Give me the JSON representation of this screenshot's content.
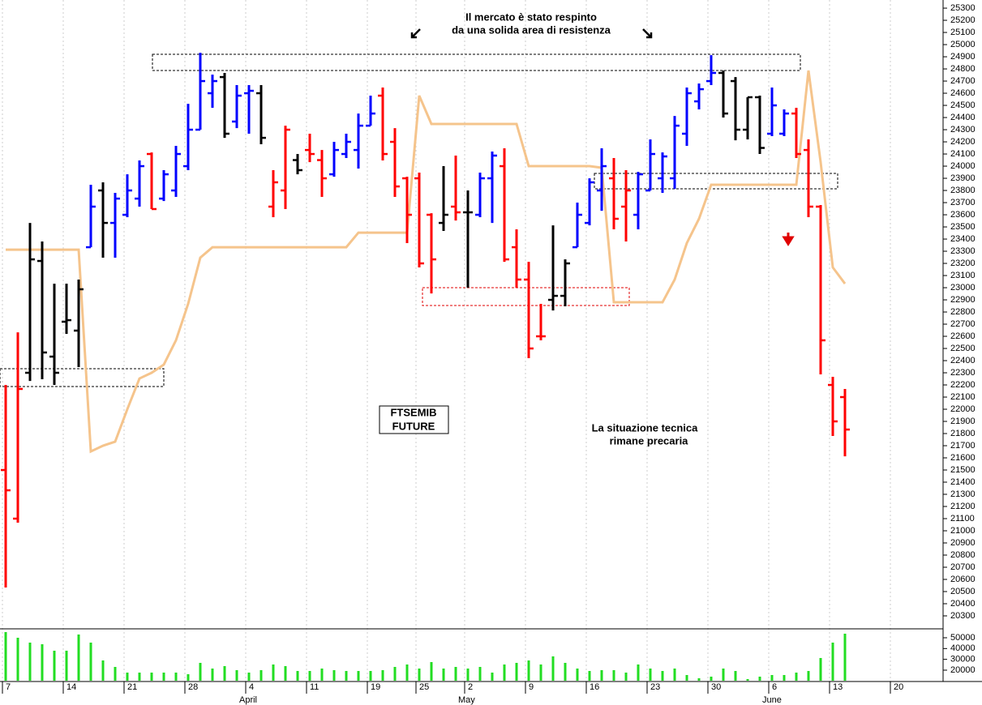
{
  "chart_data": {
    "type": "ohlc",
    "annotations": [
      {
        "lines": [
          "Il mercato è stato respinto",
          "da una solida area di resistenza"
        ],
        "color": "#000000"
      },
      {
        "lines": [
          "FTSEMIB",
          "FUTURE"
        ],
        "color": "#000000"
      },
      {
        "lines": [
          "La situazione tecnica",
          "rimane precaria"
        ],
        "color": "#e00000"
      }
    ],
    "categories": [
      "7",
      null,
      null,
      null,
      null,
      "14",
      null,
      null,
      null,
      null,
      "21",
      null,
      null,
      null,
      null,
      "28",
      null,
      null,
      null,
      null,
      "4",
      null,
      null,
      null,
      null,
      "11",
      null,
      null,
      null,
      null,
      "19",
      null,
      null,
      null,
      "25",
      null,
      null,
      null,
      "2",
      null,
      null,
      null,
      null,
      "9",
      null,
      null,
      null,
      null,
      "16",
      null,
      null,
      null,
      null,
      "23",
      null,
      null,
      null,
      null,
      "30",
      null,
      null,
      null,
      null,
      "6",
      null,
      null,
      null,
      null,
      "13",
      null,
      null,
      null,
      null,
      "20"
    ],
    "months": [
      null,
      null,
      null,
      null,
      null,
      null,
      null,
      null,
      null,
      null,
      null,
      null,
      null,
      null,
      null,
      null,
      null,
      null,
      null,
      null,
      "April",
      null,
      null,
      null,
      null,
      null,
      null,
      null,
      null,
      null,
      null,
      null,
      null,
      null,
      null,
      null,
      null,
      null,
      "May",
      null,
      null,
      null,
      null,
      null,
      null,
      null,
      null,
      null,
      null,
      null,
      null,
      null,
      null,
      null,
      null,
      null,
      null,
      null,
      null,
      null,
      null,
      null,
      null,
      "June",
      null,
      null,
      null,
      null,
      null,
      null,
      null,
      null,
      null,
      null
    ],
    "open": [
      21500,
      21100,
      22300,
      23220,
      22433,
      22720,
      22647,
      23333,
      23800,
      23533,
      23600,
      23733,
      24100,
      23733,
      23800,
      24000,
      24300,
      24600,
      24733,
      24367,
      24600,
      24600,
      23667,
      23800,
      24050,
      24133,
      24050,
      23933,
      24100,
      24133,
      24333,
      24580,
      24200,
      23900,
      23900,
      23600,
      23533,
      23667,
      23620,
      23600,
      23900,
      24000,
      23333,
      23067,
      22600,
      22900,
      22933,
      23333,
      23533,
      23800,
      23900,
      23667,
      23600,
      23800,
      23900,
      23900,
      24267,
      24533,
      24700,
      24767,
      24700,
      24300,
      24567,
      24267,
      24267,
      24433,
      24133,
      23667,
      22200,
      22100,
      null,
      null,
      null,
      null
    ],
    "high": [
      22200,
      22633,
      23533,
      23380,
      23033,
      23033,
      23067,
      23847,
      23867,
      23780,
      23933,
      24047,
      24113,
      23967,
      24167,
      24513,
      24933,
      24753,
      24767,
      24667,
      24667,
      24667,
      23967,
      24333,
      24100,
      24267,
      24133,
      24200,
      24267,
      24433,
      24580,
      24647,
      24313,
      23913,
      23947,
      23613,
      24000,
      24087,
      23800,
      23947,
      24120,
      24147,
      23480,
      23213,
      22867,
      23513,
      23233,
      23700,
      23900,
      24147,
      24067,
      23967,
      23953,
      24220,
      24113,
      24413,
      24647,
      24680,
      24913,
      24787,
      24733,
      24567,
      24580,
      24647,
      24467,
      24480,
      24220,
      23680,
      22267,
      22167,
      null,
      null,
      null,
      null
    ],
    "low": [
      20533,
      21067,
      22233,
      22247,
      22200,
      22620,
      22347,
      23333,
      23247,
      23247,
      23580,
      23667,
      23647,
      23713,
      23747,
      23967,
      24300,
      24480,
      24233,
      24313,
      24267,
      24180,
      23580,
      23647,
      23933,
      24033,
      23747,
      23913,
      24067,
      23980,
      24333,
      24047,
      23747,
      23367,
      23167,
      22953,
      23467,
      23553,
      23000,
      23580,
      23533,
      23213,
      23000,
      22420,
      22567,
      22813,
      22847,
      23333,
      23513,
      23633,
      23480,
      23380,
      23480,
      23800,
      23780,
      23813,
      24167,
      24467,
      24667,
      24400,
      24213,
      24220,
      24100,
      24247,
      24247,
      24067,
      23580,
      22287,
      21780,
      21613,
      null,
      null,
      null,
      null
    ],
    "close": [
      21333,
      22167,
      23233,
      22467,
      22300,
      22733,
      22987,
      23667,
      23533,
      23733,
      23800,
      24000,
      23647,
      23933,
      24100,
      24300,
      24700,
      24700,
      24267,
      24580,
      24620,
      24233,
      23867,
      24300,
      23967,
      24100,
      23900,
      24133,
      24200,
      24333,
      24433,
      24100,
      23833,
      23600,
      23200,
      23233,
      23600,
      23620,
      23620,
      23900,
      24087,
      23233,
      23067,
      22500,
      22600,
      22933,
      23200,
      23600,
      23867,
      24000,
      23567,
      23800,
      23933,
      24100,
      24080,
      24333,
      24600,
      24633,
      24767,
      24433,
      24300,
      24567,
      24150,
      24500,
      24433,
      24100,
      23667,
      22567,
      21900,
      21833,
      null,
      null,
      null,
      null
    ],
    "bar_colors": [
      "red",
      "red",
      "black",
      "black",
      "black",
      "black",
      "black",
      "blue",
      "black",
      "blue",
      "blue",
      "blue",
      "red",
      "blue",
      "blue",
      "blue",
      "blue",
      "blue",
      "black",
      "blue",
      "blue",
      "black",
      "red",
      "red",
      "black",
      "red",
      "red",
      "blue",
      "blue",
      "blue",
      "blue",
      "red",
      "red",
      "red",
      "red",
      "red",
      "black",
      "red",
      "black",
      "blue",
      "blue",
      "red",
      "red",
      "red",
      "red",
      "black",
      "black",
      "blue",
      "blue",
      "blue",
      "red",
      "red",
      "blue",
      "blue",
      "blue",
      "blue",
      "blue",
      "blue",
      "blue",
      "black",
      "black",
      "black",
      "black",
      "blue",
      "blue",
      "red",
      "red",
      "red",
      "red",
      "red",
      null,
      null,
      null,
      null
    ],
    "line": {
      "color": "#f5c48c",
      "values": [
        23313,
        23313,
        23313,
        23313,
        23313,
        23313,
        23313,
        21653,
        21700,
        21733,
        22000,
        22253,
        22300,
        22367,
        22567,
        22867,
        23247,
        23333,
        23333,
        23333,
        23333,
        23333,
        23333,
        23333,
        23333,
        23333,
        23333,
        23333,
        23333,
        23453,
        23453,
        23453,
        23453,
        23453,
        24580,
        24347,
        24347,
        24347,
        24347,
        24347,
        24347,
        24347,
        24347,
        24000,
        24000,
        24000,
        24000,
        24000,
        24000,
        23987,
        22880,
        22880,
        22880,
        22880,
        22880,
        23067,
        23367,
        23567,
        23847,
        23847,
        23847,
        23847,
        23847,
        23847,
        23847,
        23847,
        24787,
        24033,
        23167,
        23033,
        null,
        null,
        null,
        null
      ]
    },
    "ylim": [
      20200,
      25367
    ],
    "yticks": [
      20300,
      20400,
      20500,
      20600,
      20700,
      20800,
      20900,
      21000,
      21100,
      21200,
      21300,
      21400,
      21500,
      21600,
      21700,
      21800,
      21900,
      22000,
      22100,
      22200,
      22300,
      22400,
      22500,
      22600,
      22700,
      22800,
      22900,
      23000,
      23100,
      23200,
      23300,
      23400,
      23500,
      23600,
      23700,
      23800,
      23900,
      24000,
      24100,
      24200,
      24300,
      24400,
      24500,
      24600,
      24700,
      24800,
      24900,
      25000,
      25100,
      25200,
      25300
    ],
    "volume": {
      "color": "#22dd22",
      "ylim": [
        10250,
        57500
      ],
      "yticks": [
        20000,
        30000,
        40000,
        50000
      ],
      "values": [
        55250,
        50000,
        45500,
        44000,
        38000,
        38000,
        53000,
        45500,
        29000,
        23000,
        17750,
        17750,
        17750,
        17750,
        17750,
        16250,
        26750,
        21500,
        23750,
        20000,
        17750,
        20000,
        25250,
        23750,
        19250,
        19250,
        21500,
        20000,
        19250,
        19250,
        19250,
        20000,
        23000,
        25250,
        21500,
        27500,
        21500,
        23000,
        21500,
        23000,
        17750,
        25250,
        26750,
        29000,
        25250,
        32750,
        26750,
        21500,
        19250,
        20000,
        20000,
        17750,
        25250,
        21500,
        19250,
        21500,
        15500,
        12500,
        14000,
        21500,
        19250,
        11750,
        14000,
        15500,
        15500,
        17750,
        19250,
        31250,
        45500,
        53750,
        null,
        null,
        null,
        null
      ]
    }
  }
}
